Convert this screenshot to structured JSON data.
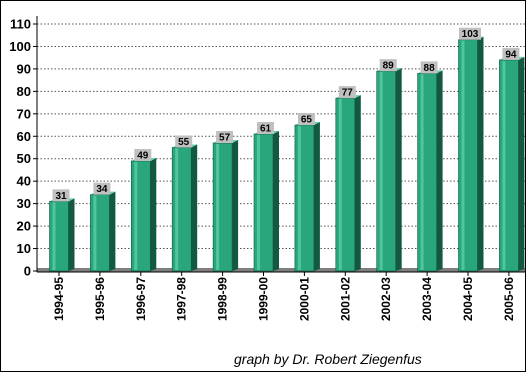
{
  "chart_data": {
    "type": "bar",
    "categories": [
      "1994-95",
      "1995-96",
      "1996-97",
      "1997-98",
      "1998-99",
      "1999-00",
      "2000-01",
      "2001-02",
      "2002-03",
      "2003-04",
      "2004-05",
      "2005-06"
    ],
    "values": [
      31,
      34,
      49,
      55,
      57,
      61,
      65,
      77,
      89,
      88,
      103,
      94
    ],
    "ylim": [
      0,
      110
    ],
    "yticks": [
      0,
      10,
      20,
      30,
      40,
      50,
      60,
      70,
      80,
      90,
      100,
      110
    ],
    "grid": true,
    "data_labels": true,
    "bar_color": "#2aa67c",
    "bar_side_color": "#13593f",
    "floor_color": "#7f7f7f",
    "label_box_color": "#c0c0c0"
  },
  "credit": "graph by Dr. Robert Ziegenfus"
}
